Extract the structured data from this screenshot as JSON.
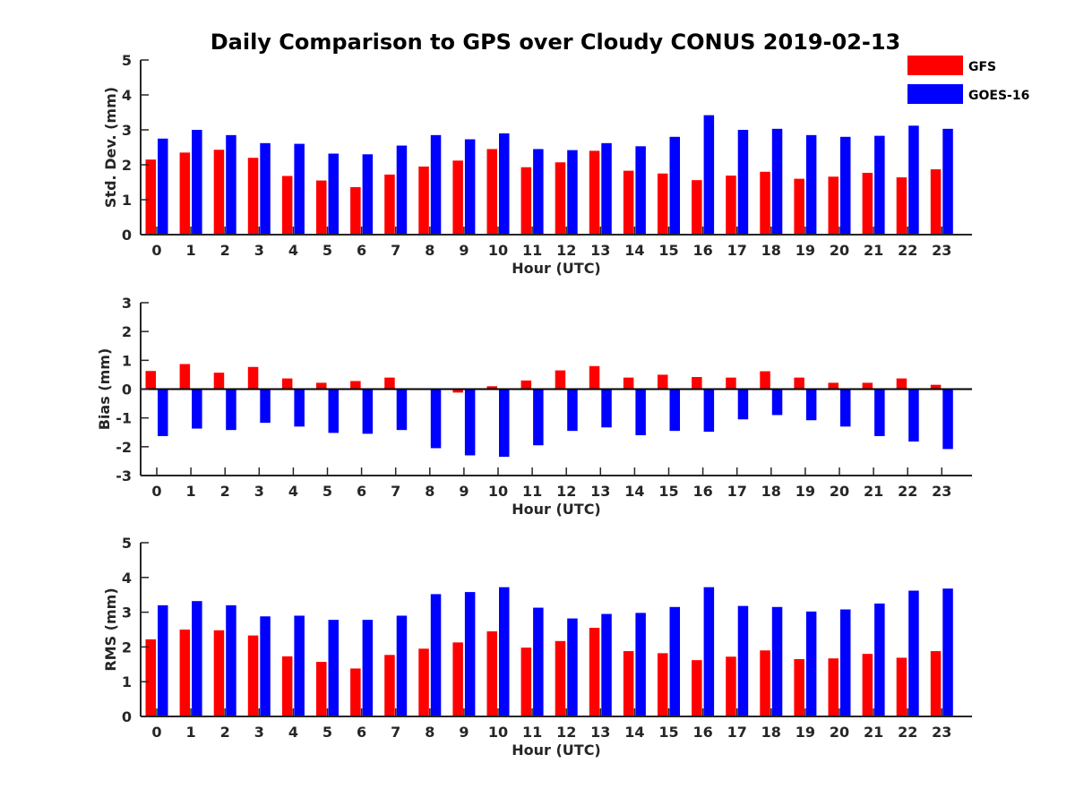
{
  "title": "Daily Comparison to GPS over Cloudy CONUS 2019-02-13",
  "legend": {
    "placement": "top-right",
    "items": [
      {
        "name": "GFS",
        "color": "#ff0000"
      },
      {
        "name": "GOES-16",
        "color": "#0000ff"
      }
    ]
  },
  "chart_data": [
    {
      "type": "bar",
      "title": "Daily Comparison to GPS over Cloudy CONUS 2019-02-13",
      "xlabel": "Hour (UTC)",
      "ylabel": "Std. Dev. (mm)",
      "ylim": [
        0,
        5
      ],
      "yticks": [
        "0",
        "1",
        "2",
        "3",
        "4",
        "5"
      ],
      "categories": [
        "0",
        "1",
        "2",
        "3",
        "4",
        "5",
        "6",
        "7",
        "8",
        "9",
        "10",
        "11",
        "12",
        "13",
        "14",
        "15",
        "16",
        "17",
        "18",
        "19",
        "20",
        "21",
        "22",
        "23"
      ],
      "zero_line": false,
      "series": [
        {
          "name": "GFS",
          "color": "#ff0000",
          "values": [
            2.15,
            2.35,
            2.43,
            2.2,
            1.68,
            1.55,
            1.36,
            1.72,
            1.95,
            2.12,
            2.45,
            1.93,
            2.07,
            2.4,
            1.83,
            1.75,
            1.56,
            1.69,
            1.8,
            1.6,
            1.66,
            1.77,
            1.64,
            1.87
          ]
        },
        {
          "name": "GOES-16",
          "color": "#0000ff",
          "values": [
            2.75,
            3.0,
            2.85,
            2.62,
            2.6,
            2.32,
            2.3,
            2.55,
            2.85,
            2.73,
            2.9,
            2.45,
            2.42,
            2.62,
            2.53,
            2.8,
            3.42,
            3.0,
            3.03,
            2.85,
            2.8,
            2.83,
            3.12,
            3.03
          ]
        }
      ]
    },
    {
      "type": "bar",
      "xlabel": "Hour (UTC)",
      "ylabel": "Bias (mm)",
      "ylim": [
        -3,
        3
      ],
      "yticks": [
        "-3",
        "-2",
        "-1",
        "0",
        "1",
        "2",
        "3"
      ],
      "categories": [
        "0",
        "1",
        "2",
        "3",
        "4",
        "5",
        "6",
        "7",
        "8",
        "9",
        "10",
        "11",
        "12",
        "13",
        "14",
        "15",
        "16",
        "17",
        "18",
        "19",
        "20",
        "21",
        "22",
        "23"
      ],
      "zero_line": true,
      "series": [
        {
          "name": "GFS",
          "color": "#ff0000",
          "values": [
            0.63,
            0.87,
            0.57,
            0.77,
            0.37,
            0.22,
            0.28,
            0.4,
            0.0,
            -0.12,
            0.1,
            0.3,
            0.65,
            0.8,
            0.4,
            0.5,
            0.42,
            0.4,
            0.62,
            0.4,
            0.22,
            0.22,
            0.37,
            0.15
          ]
        },
        {
          "name": "GOES-16",
          "color": "#0000ff",
          "values": [
            -1.63,
            -1.37,
            -1.42,
            -1.17,
            -1.3,
            -1.52,
            -1.55,
            -1.42,
            -2.05,
            -2.3,
            -2.35,
            -1.95,
            -1.45,
            -1.33,
            -1.6,
            -1.45,
            -1.48,
            -1.05,
            -0.9,
            -1.08,
            -1.3,
            -1.63,
            -1.82,
            -2.08
          ]
        }
      ]
    },
    {
      "type": "bar",
      "xlabel": "Hour (UTC)",
      "ylabel": "RMS (mm)",
      "ylim": [
        0,
        5
      ],
      "yticks": [
        "0",
        "1",
        "2",
        "3",
        "4",
        "5"
      ],
      "categories": [
        "0",
        "1",
        "2",
        "3",
        "4",
        "5",
        "6",
        "7",
        "8",
        "9",
        "10",
        "11",
        "12",
        "13",
        "14",
        "15",
        "16",
        "17",
        "18",
        "19",
        "20",
        "21",
        "22",
        "23"
      ],
      "zero_line": false,
      "series": [
        {
          "name": "GFS",
          "color": "#ff0000",
          "values": [
            2.22,
            2.5,
            2.48,
            2.33,
            1.73,
            1.57,
            1.38,
            1.77,
            1.95,
            2.13,
            2.45,
            1.98,
            2.17,
            2.55,
            1.88,
            1.82,
            1.62,
            1.72,
            1.9,
            1.65,
            1.67,
            1.8,
            1.69,
            1.88
          ]
        },
        {
          "name": "GOES-16",
          "color": "#0000ff",
          "values": [
            3.2,
            3.32,
            3.2,
            2.88,
            2.9,
            2.78,
            2.78,
            2.9,
            3.52,
            3.58,
            3.72,
            3.13,
            2.82,
            2.95,
            2.98,
            3.15,
            3.72,
            3.18,
            3.15,
            3.02,
            3.08,
            3.25,
            3.62,
            3.68
          ]
        }
      ]
    }
  ]
}
